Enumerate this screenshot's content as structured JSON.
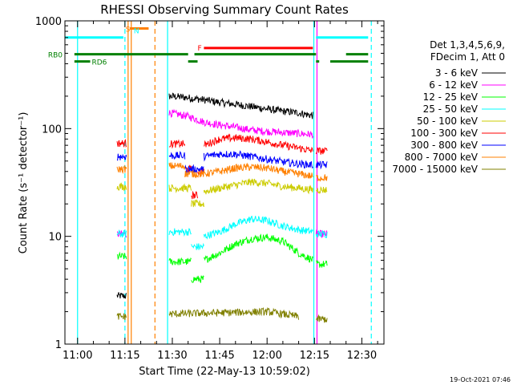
{
  "chart_data": {
    "type": "line",
    "title": "RHESSI Observing Summary Count Rates",
    "xlabel": "Start Time (22-May-13 10:59:02)",
    "ylabel": "Count Rate (s⁻¹ detector⁻¹)",
    "footer": "19-Oct-2021 07:46",
    "x_unit": "minutes after 11:00 UT",
    "xlim": [
      -4,
      97
    ],
    "ylim": [
      1,
      1000
    ],
    "y_scale": "log",
    "x_ticks": [
      {
        "x": 0,
        "label": "11:00"
      },
      {
        "x": 15,
        "label": "11:15"
      },
      {
        "x": 30,
        "label": "11:30"
      },
      {
        "x": 45,
        "label": "11:45"
      },
      {
        "x": 60,
        "label": "12:00"
      },
      {
        "x": 75,
        "label": "12:15"
      },
      {
        "x": 90,
        "label": "12:30"
      }
    ],
    "y_ticks": [
      {
        "y": 1,
        "label": "1"
      },
      {
        "y": 10,
        "label": "10"
      },
      {
        "y": 100,
        "label": "100"
      },
      {
        "y": 1000,
        "label": "1000"
      }
    ],
    "legend": {
      "placement": "right",
      "header": [
        "Det 1,3,4,5,6,9,",
        "FDecim 1, Att 0"
      ]
    },
    "series": [
      {
        "name": "3 - 6 keV",
        "color": "#000000",
        "segments": [
          [
            [
              12.5,
              2.8
            ],
            [
              15.5,
              2.8
            ]
          ],
          [
            [
              29,
              200
            ],
            [
              34,
              195
            ],
            [
              40,
              185
            ],
            [
              45,
              175
            ],
            [
              50,
              168
            ],
            [
              55,
              160
            ],
            [
              60,
              152
            ],
            [
              65,
              145
            ],
            [
              70,
              140
            ],
            [
              74.5,
              132
            ]
          ]
        ]
      },
      {
        "name": "6 - 12 keV",
        "color": "#ff00ff",
        "segments": [
          [
            [
              12.5,
              10.5
            ],
            [
              15.5,
              10.5
            ]
          ],
          [
            [
              29,
              140
            ],
            [
              35,
              130
            ],
            [
              40,
              115
            ],
            [
              45,
              108
            ],
            [
              50,
              103
            ],
            [
              55,
              97
            ],
            [
              60,
              94
            ],
            [
              65,
              92
            ],
            [
              70,
              90
            ],
            [
              74.5,
              88
            ]
          ],
          [
            [
              75.5,
              10.5
            ],
            [
              79,
              10.5
            ]
          ]
        ]
      },
      {
        "name": "12 - 25 keV",
        "color": "#00ff00",
        "segments": [
          [
            [
              12.5,
              6.5
            ],
            [
              15.5,
              6.5
            ]
          ],
          [
            [
              29,
              5.8
            ],
            [
              36,
              5.8
            ]
          ],
          [
            [
              36,
              4
            ],
            [
              40,
              4
            ]
          ],
          [
            [
              40,
              6
            ],
            [
              45,
              7
            ],
            [
              50,
              8.5
            ],
            [
              55,
              9.5
            ],
            [
              60,
              9.8
            ],
            [
              65,
              9
            ],
            [
              70,
              7
            ],
            [
              74.5,
              6
            ]
          ],
          [
            [
              75.5,
              5.5
            ],
            [
              79,
              5.5
            ]
          ]
        ]
      },
      {
        "name": "25 - 50 keV",
        "color": "#00ffff",
        "segments": [
          [
            [
              12.5,
              10.5
            ],
            [
              15.5,
              10.5
            ]
          ],
          [
            [
              29,
              11
            ],
            [
              36,
              11
            ]
          ],
          [
            [
              36,
              8
            ],
            [
              40,
              8
            ]
          ],
          [
            [
              40,
              10
            ],
            [
              45,
              11
            ],
            [
              50,
              13
            ],
            [
              55,
              14.5
            ],
            [
              60,
              14
            ],
            [
              65,
              12.5
            ],
            [
              70,
              11.5
            ],
            [
              74.5,
              11
            ]
          ],
          [
            [
              75.5,
              10.5
            ],
            [
              79,
              10.5
            ]
          ]
        ]
      },
      {
        "name": "50 - 100 keV",
        "color": "#cccc00",
        "segments": [
          [
            [
              12.5,
              29
            ],
            [
              15.5,
              29
            ]
          ],
          [
            [
              29,
              28
            ],
            [
              36,
              28
            ]
          ],
          [
            [
              36,
              20
            ],
            [
              40,
              20
            ]
          ],
          [
            [
              40,
              26
            ],
            [
              45,
              28
            ],
            [
              50,
              30
            ],
            [
              55,
              32
            ],
            [
              60,
              31
            ],
            [
              65,
              29
            ],
            [
              70,
              28
            ],
            [
              74.5,
              27
            ]
          ],
          [
            [
              75.5,
              27
            ],
            [
              79,
              27
            ]
          ]
        ]
      },
      {
        "name": "100 - 300 keV",
        "color": "#ff0000",
        "segments": [
          [
            [
              12.5,
              73
            ],
            [
              15.5,
              73
            ]
          ],
          [
            [
              29,
              72
            ],
            [
              34,
              72
            ]
          ],
          [
            [
              34,
              42
            ],
            [
              36,
              42
            ]
          ],
          [
            [
              36,
              24
            ],
            [
              38,
              24
            ]
          ],
          [
            [
              38,
              40
            ],
            [
              40,
              40
            ]
          ],
          [
            [
              40,
              70
            ],
            [
              45,
              80
            ],
            [
              50,
              82
            ],
            [
              55,
              80
            ],
            [
              60,
              75
            ],
            [
              65,
              70
            ],
            [
              70,
              66
            ],
            [
              74.5,
              62
            ]
          ],
          [
            [
              75.5,
              62
            ],
            [
              79,
              62
            ]
          ]
        ]
      },
      {
        "name": "300 - 800 keV",
        "color": "#0000ff",
        "segments": [
          [
            [
              12.5,
              55
            ],
            [
              15.5,
              55
            ]
          ],
          [
            [
              29,
              56
            ],
            [
              34,
              56
            ]
          ],
          [
            [
              34,
              42
            ],
            [
              36,
              42
            ]
          ],
          [
            [
              36,
              42
            ],
            [
              40,
              42
            ]
          ],
          [
            [
              40,
              55
            ],
            [
              45,
              58
            ],
            [
              50,
              58
            ],
            [
              55,
              55
            ],
            [
              60,
              52
            ],
            [
              65,
              49
            ],
            [
              70,
              47
            ],
            [
              74.5,
              46
            ]
          ],
          [
            [
              75.5,
              46
            ],
            [
              79,
              46
            ]
          ]
        ]
      },
      {
        "name": "800 - 7000 keV",
        "color": "#ff8000",
        "segments": [
          [
            [
              12.5,
              42
            ],
            [
              15.5,
              42
            ]
          ],
          [
            [
              29,
              45
            ],
            [
              34,
              45
            ]
          ],
          [
            [
              34,
              38
            ],
            [
              40,
              38
            ]
          ],
          [
            [
              40,
              38
            ],
            [
              45,
              40
            ],
            [
              50,
              43
            ],
            [
              55,
              44
            ],
            [
              60,
              43
            ],
            [
              65,
              40
            ],
            [
              70,
              38
            ],
            [
              74.5,
              36
            ]
          ],
          [
            [
              75.5,
              35
            ],
            [
              79,
              35
            ]
          ]
        ]
      },
      {
        "name": "7000 - 15000 keV",
        "color": "#808000",
        "segments": [
          [
            [
              12.5,
              1.8
            ],
            [
              15.5,
              1.8
            ]
          ],
          [
            [
              29,
              1.9
            ],
            [
              60,
              2
            ],
            [
              70,
              1.8
            ]
          ],
          [
            [
              75.5,
              1.7
            ],
            [
              79,
              1.7
            ]
          ]
        ]
      }
    ],
    "state_bars": [
      {
        "label": "",
        "color": "#00ffff",
        "level": 700,
        "ranges": [
          [
            -4,
            14.5
          ],
          [
            75.5,
            92
          ]
        ]
      },
      {
        "label": "S",
        "color": "#ff8000",
        "level": 850,
        "ranges": [
          [
            16.5,
            22.5
          ]
        ]
      },
      {
        "label": "F",
        "color": "#ff0000",
        "level": 560,
        "ranges": [
          [
            40,
            74.5
          ]
        ]
      },
      {
        "label": "RB0",
        "color": "#008000",
        "level": 490,
        "ranges": [
          [
            -1,
            35
          ],
          [
            37,
            75.5
          ],
          [
            85,
            92
          ]
        ]
      },
      {
        "label": "RD6",
        "color": "#008000",
        "level": 420,
        "ranges": [
          [
            -1,
            4
          ],
          [
            35,
            38
          ],
          [
            75.5,
            76.5
          ],
          [
            80,
            92
          ]
        ]
      }
    ],
    "vlines": [
      {
        "x": 0,
        "color": "#00ffff",
        "style": "solid"
      },
      {
        "x": 15,
        "color": "#00ffff",
        "style": "dashed"
      },
      {
        "x": 16,
        "color": "#ff8000",
        "style": "solid"
      },
      {
        "x": 17,
        "color": "#ff8000",
        "style": "solid"
      },
      {
        "x": 24.5,
        "color": "#ff8000",
        "style": "dashed"
      },
      {
        "x": 28.5,
        "color": "#00ffff",
        "style": "solid"
      },
      {
        "x": 74.8,
        "color": "#00ffff",
        "style": "solid"
      },
      {
        "x": 75.8,
        "color": "#ff00ff",
        "style": "solid"
      },
      {
        "x": 93,
        "color": "#00ffff",
        "style": "dashed"
      }
    ],
    "annotations": [
      {
        "text": "N",
        "x": 17.8,
        "y": 820,
        "color": "#00ffff"
      }
    ]
  }
}
